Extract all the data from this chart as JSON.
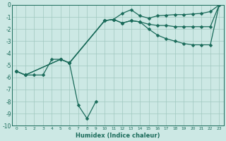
{
  "xlabel": "Humidex (Indice chaleur)",
  "xlim": [
    -0.5,
    23.5
  ],
  "ylim": [
    -10,
    0
  ],
  "bg_color": "#cce8e4",
  "grid_color": "#a0c8c0",
  "line_color": "#1a6b5a",
  "markersize": 2.5,
  "linewidth": 0.9,
  "series": {
    "line1": {
      "x": [
        0,
        1,
        2,
        3,
        4,
        5,
        6,
        10,
        11,
        12,
        13,
        14,
        15,
        16,
        17,
        18,
        19,
        20,
        21,
        22,
        23
      ],
      "y": [
        -5.5,
        -5.8,
        -5.8,
        -5.8,
        -4.5,
        -4.5,
        -4.8,
        -1.3,
        -1.2,
        -0.7,
        -0.4,
        -0.9,
        -1.1,
        -0.9,
        -0.85,
        -0.8,
        -0.8,
        -0.75,
        -0.7,
        -0.55,
        0.0
      ]
    },
    "line2": {
      "x": [
        0,
        1,
        5,
        6,
        10,
        11,
        12,
        13,
        14,
        15,
        16,
        17,
        18,
        19,
        20,
        21,
        22,
        23
      ],
      "y": [
        -5.5,
        -5.8,
        -4.5,
        -4.8,
        -1.3,
        -1.2,
        -1.5,
        -1.3,
        -1.4,
        -1.6,
        -1.7,
        -1.7,
        -1.8,
        -1.8,
        -1.8,
        -1.8,
        -1.8,
        0.0
      ]
    },
    "line3": {
      "x": [
        0,
        1,
        5,
        6,
        10,
        11,
        12,
        13,
        14,
        15,
        16,
        17,
        18,
        19,
        20,
        21,
        22,
        23
      ],
      "y": [
        -5.5,
        -5.8,
        -4.5,
        -4.8,
        -1.3,
        -1.2,
        -1.5,
        -1.3,
        -1.4,
        -2.0,
        -2.5,
        -2.8,
        -3.0,
        -3.2,
        -3.3,
        -3.3,
        -3.3,
        0.0
      ]
    },
    "line4": {
      "x": [
        6,
        7,
        8,
        9
      ],
      "y": [
        -4.8,
        -8.3,
        -9.4,
        -8.0
      ]
    }
  }
}
